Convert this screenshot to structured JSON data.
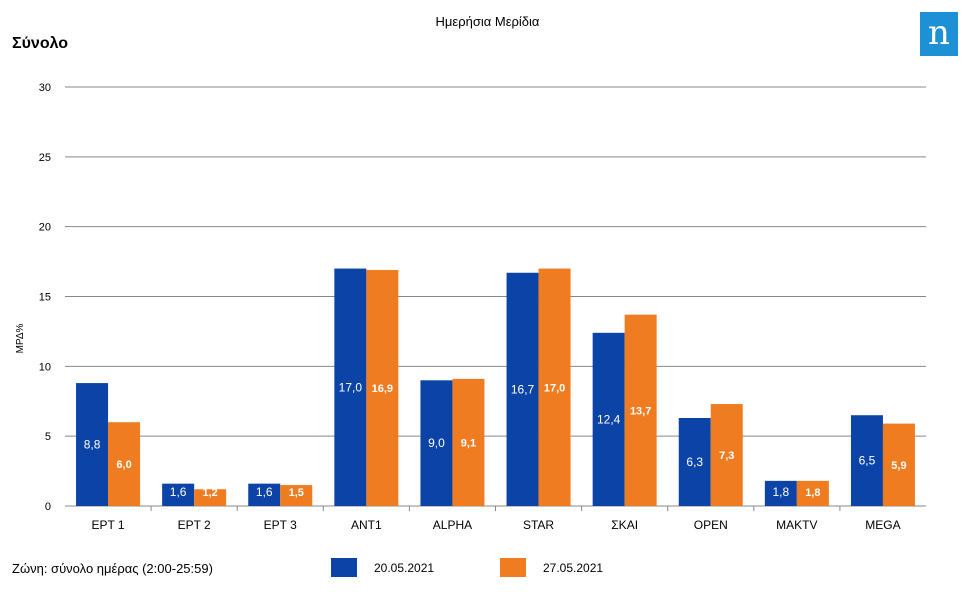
{
  "header": {
    "title": "Ημερήσια Μερίδια",
    "section": "Σύνολο",
    "logo_text": "n"
  },
  "footer": {
    "zone": "Ζώνη: σύνολο ημέρας (2:00-25:59)"
  },
  "colors": {
    "series1": "#0b43a6",
    "series2": "#f07c22",
    "grid": "#888888",
    "logo": "#1e91d6"
  },
  "chart_data": {
    "type": "bar",
    "title": "Ημερήσια Μερίδια",
    "subtitle": "Σύνολο",
    "ylabel": "ΜΡΔ%",
    "xlabel": "",
    "ylim": [
      0,
      30
    ],
    "yticks": [
      0,
      5,
      10,
      15,
      20,
      25,
      30
    ],
    "grid": true,
    "legend_position": "bottom",
    "categories": [
      "ΕΡΤ 1",
      "ΕΡΤ 2",
      "ΕΡΤ 3",
      "ANT1",
      "ALPHA",
      "STAR",
      "ΣΚΑΙ",
      "OPEN",
      "MAKTV",
      "MEGA"
    ],
    "series": [
      {
        "name": "20.05.2021",
        "values": [
          8.8,
          1.6,
          1.6,
          17.0,
          9.0,
          16.7,
          12.4,
          6.3,
          1.8,
          6.5
        ],
        "labels": [
          "8,8",
          "1,6",
          "1,6",
          "17,0",
          "9,0",
          "16,7",
          "12,4",
          "6,3",
          "1,8",
          "6,5"
        ]
      },
      {
        "name": "27.05.2021",
        "values": [
          6.0,
          1.2,
          1.5,
          16.9,
          9.1,
          17.0,
          13.7,
          7.3,
          1.8,
          5.9
        ],
        "labels": [
          "6,0",
          "1,2",
          "1,5",
          "16,9",
          "9,1",
          "17,0",
          "13,7",
          "7,3",
          "1,8",
          "5,9"
        ]
      }
    ]
  }
}
